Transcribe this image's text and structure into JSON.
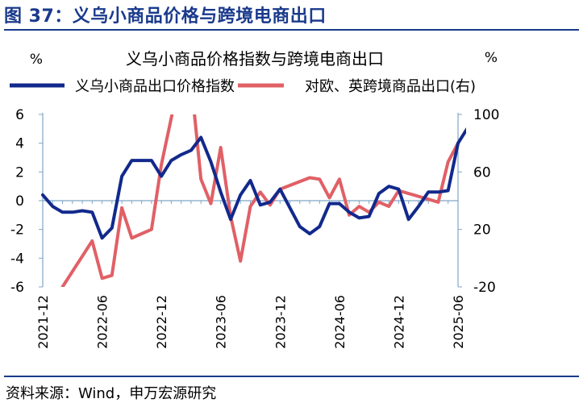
{
  "figure": {
    "title": "图 37：义乌小商品价格与跨境电商出口",
    "source": "资料来源：Wind，申万宏源研究"
  },
  "colors": {
    "brand": "#1a3a8c",
    "series_blue": "#12298c",
    "series_red": "#e06066",
    "axis": "#7fa6c8"
  },
  "chart_data": {
    "type": "line",
    "title": "义乌小商品价格指数与跨境电商出口",
    "y_left_unit": "%",
    "y_right_unit": "%",
    "y_left": {
      "min": -6,
      "max": 6,
      "ticks": [
        "-6",
        "-4",
        "-2",
        "0",
        "2",
        "4",
        "6"
      ]
    },
    "y_right": {
      "min": -20,
      "max": 100,
      "ticks": [
        "-20",
        "20",
        "60",
        "100"
      ]
    },
    "x_tick_labels": [
      "2021-12",
      "2022-06",
      "2022-12",
      "2023-06",
      "2023-12",
      "2024-06",
      "2024-12",
      "2025-06"
    ],
    "x_start": "2021-12",
    "x_end": "2025-06",
    "legend_position": "top",
    "grid": false,
    "series": [
      {
        "name": "义乌小商品出口价格指数",
        "axis": "left",
        "color": "#12298c",
        "x": [
          "2021-12",
          "2022-01",
          "2022-02",
          "2022-03",
          "2022-04",
          "2022-05",
          "2022-06",
          "2022-07",
          "2022-08",
          "2022-09",
          "2022-10",
          "2022-11",
          "2022-12",
          "2023-01",
          "2023-02",
          "2023-03",
          "2023-04",
          "2023-05",
          "2023-06",
          "2023-07",
          "2023-08",
          "2023-09",
          "2023-10",
          "2023-11",
          "2023-12",
          "2024-02",
          "2024-03",
          "2024-04",
          "2024-05",
          "2024-06",
          "2024-07",
          "2024-08",
          "2024-09",
          "2024-10",
          "2024-11",
          "2024-12",
          "2025-01",
          "2025-02",
          "2025-03",
          "2025-04",
          "2025-05",
          "2025-06",
          "2025-07"
        ],
        "values": [
          0.4,
          -0.4,
          -0.8,
          -0.8,
          -0.7,
          -0.8,
          -2.6,
          -1.9,
          1.7,
          2.8,
          2.8,
          2.8,
          1.7,
          2.8,
          3.2,
          3.5,
          4.4,
          2.7,
          0.6,
          -1.3,
          0.4,
          1.4,
          -0.3,
          -0.1,
          0.8,
          -1.8,
          -2.3,
          -1.8,
          -0.2,
          -0.2,
          -0.8,
          -1.2,
          -1.1,
          0.5,
          1.0,
          0.8,
          -1.3,
          -0.4,
          0.6,
          0.6,
          0.7,
          4.0,
          5.1
        ]
      },
      {
        "name": "对欧、英跨境商品出口(右)",
        "axis": "right",
        "color": "#e06066",
        "x": [
          "2022-02",
          "2022-05",
          "2022-06",
          "2022-07",
          "2022-08",
          "2022-09",
          "2022-10",
          "2022-11",
          "2022-12",
          "2023-02",
          "2023-03",
          "2023-04",
          "2023-05",
          "2023-06",
          "2023-07",
          "2023-08",
          "2023-09",
          "2023-10",
          "2023-11",
          "2023-12",
          "2024-03",
          "2024-04",
          "2024-05",
          "2024-06",
          "2024-07",
          "2024-08",
          "2024-09",
          "2024-10",
          "2024-11",
          "2024-12",
          "2025-04",
          "2025-05",
          "2025-06"
        ],
        "values": [
          -20,
          12,
          -14,
          -12,
          35,
          14,
          17,
          20,
          65,
          130,
          124,
          55,
          38,
          77,
          29,
          -2,
          36,
          46,
          37,
          48,
          56,
          55,
          42,
          55,
          30,
          36,
          32,
          39,
          36,
          47,
          39,
          67,
          80
        ]
      }
    ]
  }
}
